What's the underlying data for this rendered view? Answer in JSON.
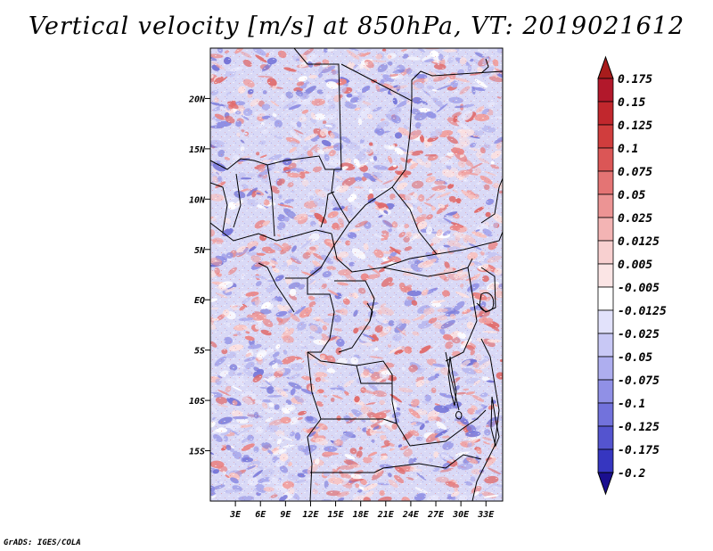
{
  "title": "Vertical velocity [m/s] at 850hPa, VT: 2019021612",
  "credit": "GrADS: IGES/COLA",
  "map": {
    "lon_range": [
      0,
      35
    ],
    "lat_range": [
      -20,
      25
    ],
    "lat_ticks": [
      {
        "value": 20,
        "label": "20N"
      },
      {
        "value": 15,
        "label": "15N"
      },
      {
        "value": 10,
        "label": "10N"
      },
      {
        "value": 5,
        "label": "5N"
      },
      {
        "value": 0,
        "label": "EQ"
      },
      {
        "value": -5,
        "label": "5S"
      },
      {
        "value": -10,
        "label": "10S"
      },
      {
        "value": -15,
        "label": "15S"
      }
    ],
    "lon_ticks": [
      {
        "value": 3,
        "label": "3E"
      },
      {
        "value": 6,
        "label": "6E"
      },
      {
        "value": 9,
        "label": "9E"
      },
      {
        "value": 12,
        "label": "12E"
      },
      {
        "value": 15,
        "label": "15E"
      },
      {
        "value": 18,
        "label": "18E"
      },
      {
        "value": 21,
        "label": "21E"
      },
      {
        "value": 24,
        "label": "24E"
      },
      {
        "value": 27,
        "label": "27E"
      },
      {
        "value": 30,
        "label": "30E"
      },
      {
        "value": 33,
        "label": "33E"
      }
    ]
  },
  "colorbar": {
    "levels": [
      {
        "label": "0.175",
        "color": "#b2182b"
      },
      {
        "label": "0.15",
        "color": "#c1272d"
      },
      {
        "label": "0.125",
        "color": "#d03d3d"
      },
      {
        "label": "0.1",
        "color": "#db5656"
      },
      {
        "label": "0.075",
        "color": "#e47474"
      },
      {
        "label": "0.05",
        "color": "#ec9494"
      },
      {
        "label": "0.025",
        "color": "#f3b4b4"
      },
      {
        "label": "0.0125",
        "color": "#f8d0d0"
      },
      {
        "label": "0.005",
        "color": "#fbe5e5"
      },
      {
        "label": "-0.005",
        "color": "#ffffff"
      },
      {
        "label": "-0.0125",
        "color": "#e2e2fb"
      },
      {
        "label": "-0.025",
        "color": "#c8c8f5"
      },
      {
        "label": "-0.05",
        "color": "#aeaeef"
      },
      {
        "label": "-0.075",
        "color": "#9090e6"
      },
      {
        "label": "-0.1",
        "color": "#7272dc"
      },
      {
        "label": "-0.125",
        "color": "#5454cf"
      },
      {
        "label": "-0.175",
        "color": "#3636c0"
      },
      {
        "label": "-0.2",
        "color": "#2020a8"
      }
    ],
    "top_color": "#a81c1c",
    "bottom_color": "#1a0f8f"
  }
}
